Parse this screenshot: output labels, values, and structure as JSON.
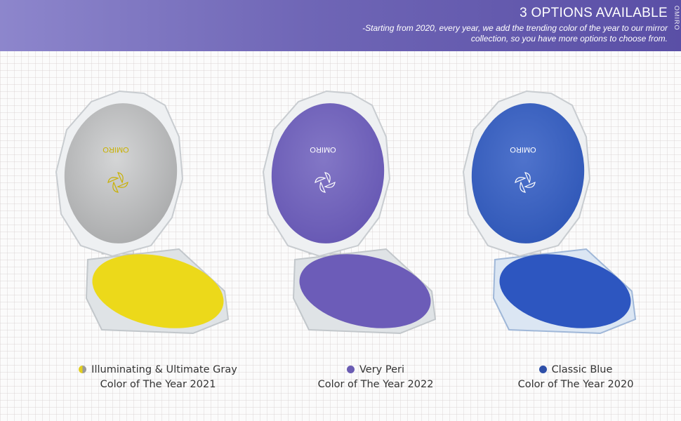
{
  "banner": {
    "title": "3 OPTIONS AVAILABLE",
    "subtitle": "-Starting from 2020, every year, we add the trending color of the year to our mirror collection, so you have more options to choose from.",
    "brand_side": "OMIRO"
  },
  "products": [
    {
      "name": "Illuminating & Ultimate Gray",
      "subtitle": "Color of The Year 2021",
      "mirror_color": "#a9aaab",
      "base_color": "#ecd91a",
      "dot_colors": [
        "#e3cf1e",
        "#9a9a9a"
      ],
      "logo_text": "OMIRO"
    },
    {
      "name": "Very Peri",
      "subtitle": "Color of The Year 2022",
      "mirror_color": "#6657b3",
      "base_color": "#6c5cb8",
      "dot_colors": [
        "#6a5cb3",
        "#6a5cb3"
      ],
      "logo_text": "OMIRO"
    },
    {
      "name": "Classic Blue",
      "subtitle": "Color of The Year 2020",
      "mirror_color": "#2f57b7",
      "base_color": "#2d56c0",
      "dot_colors": [
        "#2e4fa8",
        "#2e4fa8"
      ],
      "logo_text": "OMIRO"
    }
  ]
}
